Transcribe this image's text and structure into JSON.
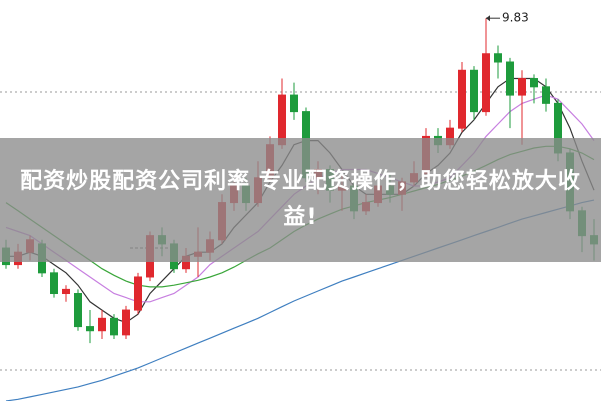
{
  "chart_data": {
    "type": "candlestick",
    "title": "配资炒股配资公司利率 专业配资操作，助您轻松放大收益!",
    "ylim": [
      5.2,
      10.05
    ],
    "up_color": "#e0282e",
    "down_color": "#1e9b3c",
    "open": [
      7.05,
      6.85,
      7.0,
      7.1,
      6.75,
      6.5,
      6.5,
      6.1,
      6.05,
      6.2,
      6.0,
      6.3,
      6.7,
      7.2,
      7.1,
      6.8,
      6.95,
      7.0,
      7.15,
      7.6,
      7.8,
      7.6,
      7.9,
      8.3,
      8.9,
      8.7,
      7.9,
      8.0,
      7.75,
      7.8,
      7.5,
      7.6,
      7.8,
      7.7,
      7.85,
      7.95,
      8.4,
      8.3,
      8.5,
      9.2,
      8.7,
      9.4,
      9.3,
      8.9,
      9.1,
      9.0,
      8.8,
      8.2,
      7.5,
      7.2
    ],
    "close": [
      6.85,
      7.0,
      7.15,
      6.75,
      6.5,
      6.55,
      6.1,
      6.05,
      6.2,
      6.0,
      6.3,
      6.7,
      7.2,
      7.1,
      6.8,
      6.95,
      7.0,
      7.15,
      7.6,
      7.8,
      7.6,
      7.9,
      8.3,
      8.9,
      8.7,
      7.9,
      8.0,
      7.75,
      7.8,
      7.5,
      7.6,
      7.8,
      7.7,
      7.85,
      7.95,
      8.4,
      8.3,
      8.5,
      9.2,
      8.7,
      9.4,
      9.3,
      8.9,
      9.1,
      9.0,
      8.8,
      8.2,
      7.5,
      7.2,
      7.1
    ],
    "high": [
      7.15,
      7.1,
      7.2,
      7.15,
      6.8,
      6.6,
      6.55,
      6.3,
      6.3,
      6.25,
      6.35,
      6.75,
      7.25,
      7.3,
      7.15,
      7.05,
      7.3,
      7.25,
      7.7,
      7.9,
      7.9,
      8.1,
      8.4,
      9.1,
      9.05,
      8.75,
      8.1,
      8.05,
      7.95,
      7.85,
      7.7,
      7.9,
      7.95,
      7.9,
      8.1,
      8.5,
      8.5,
      8.6,
      9.3,
      9.25,
      9.83,
      9.5,
      9.35,
      9.2,
      9.15,
      9.1,
      8.85,
      8.25,
      7.55,
      7.4
    ],
    "low": [
      6.8,
      6.8,
      6.9,
      6.7,
      6.45,
      6.4,
      6.05,
      5.9,
      5.95,
      5.95,
      5.95,
      6.25,
      6.65,
      6.95,
      6.75,
      6.75,
      6.7,
      6.9,
      7.1,
      7.5,
      7.5,
      7.55,
      7.85,
      8.25,
      8.6,
      7.85,
      7.7,
      7.6,
      7.5,
      7.4,
      7.45,
      7.55,
      7.6,
      7.5,
      7.8,
      7.9,
      8.2,
      8.25,
      8.45,
      8.6,
      8.65,
      9.1,
      8.5,
      8.3,
      8.8,
      8.7,
      8.1,
      7.4,
      7.0,
      6.9
    ],
    "series": [
      {
        "color": "#333333",
        "values": [
          6.95,
          6.95,
          7.0,
          6.95,
          6.85,
          6.75,
          6.6,
          6.4,
          6.3,
          6.2,
          6.15,
          6.25,
          6.5,
          6.65,
          6.8,
          6.95,
          7.0,
          7.0,
          7.1,
          7.3,
          7.45,
          7.6,
          7.85,
          8.05,
          8.3,
          8.35,
          8.35,
          8.2,
          8.0,
          7.8,
          7.7,
          7.7,
          7.7,
          7.7,
          7.8,
          7.95,
          8.05,
          8.2,
          8.45,
          8.6,
          8.8,
          9.0,
          9.1,
          9.1,
          9.1,
          9.0,
          8.8,
          8.5,
          8.1,
          7.75
        ]
      },
      {
        "color": "#c77fe0",
        "values": [
          7.3,
          7.25,
          7.2,
          7.1,
          7.0,
          6.9,
          6.8,
          6.7,
          6.6,
          6.5,
          6.45,
          6.4,
          6.4,
          6.45,
          6.5,
          6.6,
          6.7,
          6.85,
          6.95,
          7.05,
          7.15,
          7.25,
          7.4,
          7.55,
          7.7,
          7.8,
          7.9,
          7.95,
          8.0,
          8.0,
          8.0,
          7.95,
          7.9,
          7.85,
          7.8,
          7.8,
          7.85,
          7.9,
          8.05,
          8.2,
          8.4,
          8.55,
          8.7,
          8.8,
          8.85,
          8.9,
          8.85,
          8.7,
          8.55,
          8.35
        ]
      },
      {
        "color": "#3aa63a",
        "values": [
          7.6,
          7.5,
          7.4,
          7.3,
          7.2,
          7.1,
          7.0,
          6.9,
          6.8,
          6.72,
          6.65,
          6.6,
          6.58,
          6.58,
          6.6,
          6.63,
          6.66,
          6.7,
          6.75,
          6.82,
          6.9,
          6.98,
          7.05,
          7.15,
          7.25,
          7.33,
          7.4,
          7.46,
          7.52,
          7.56,
          7.6,
          7.63,
          7.66,
          7.7,
          7.74,
          7.78,
          7.82,
          7.87,
          7.92,
          7.98,
          8.05,
          8.12,
          8.18,
          8.22,
          8.26,
          8.28,
          8.28,
          8.25,
          8.2,
          8.12
        ]
      },
      {
        "color": "#3f7fc0",
        "values": [
          5.2,
          5.22,
          5.25,
          5.28,
          5.31,
          5.34,
          5.37,
          5.41,
          5.45,
          5.5,
          5.55,
          5.6,
          5.66,
          5.72,
          5.78,
          5.84,
          5.9,
          5.96,
          6.02,
          6.08,
          6.14,
          6.2,
          6.27,
          6.34,
          6.41,
          6.47,
          6.53,
          6.59,
          6.65,
          6.7,
          6.75,
          6.8,
          6.85,
          6.9,
          6.95,
          7.0,
          7.05,
          7.1,
          7.15,
          7.2,
          7.25,
          7.3,
          7.35,
          7.4,
          7.44,
          7.48,
          7.52,
          7.56,
          7.6,
          7.63
        ]
      }
    ],
    "annotation_index": 40
  }
}
